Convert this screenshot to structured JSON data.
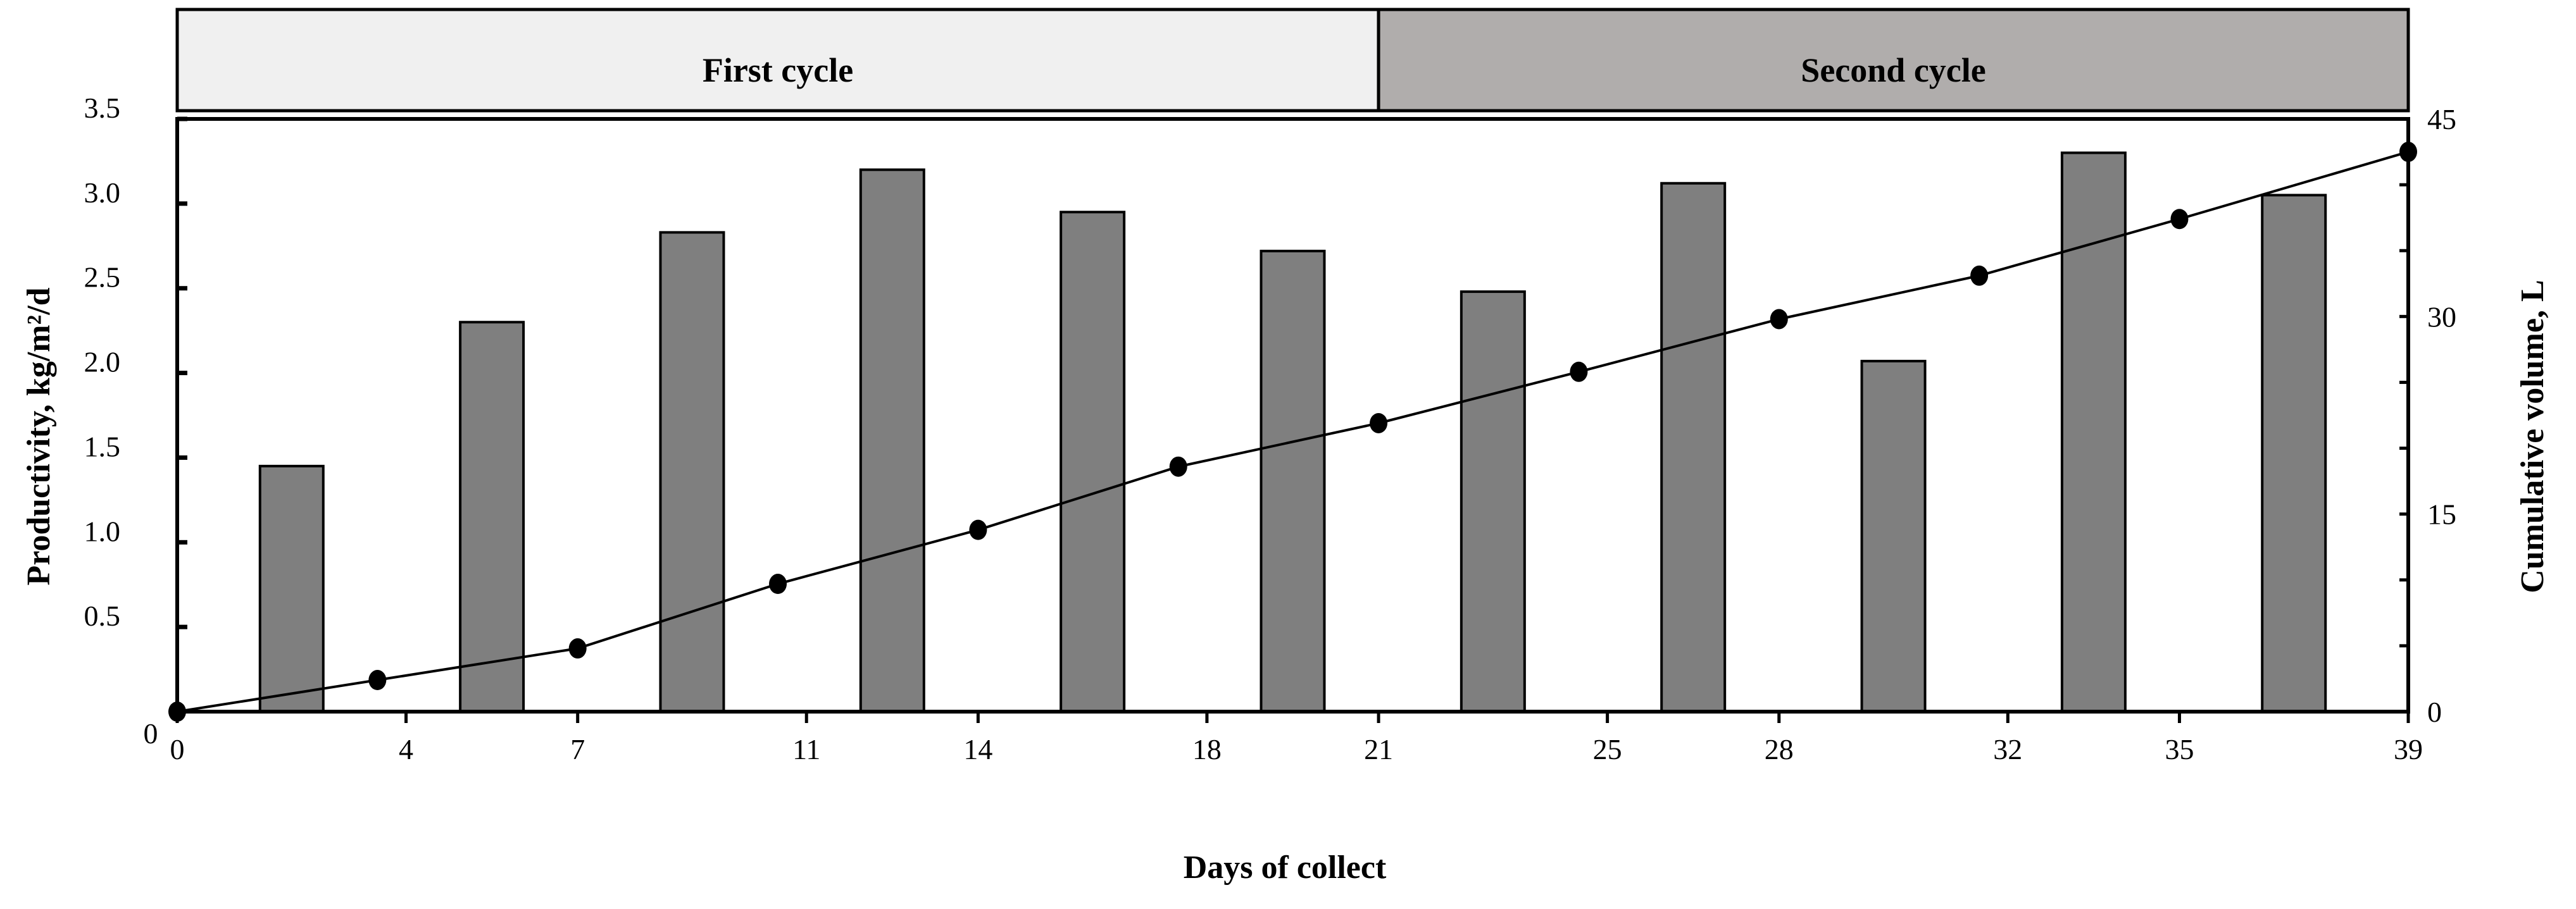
{
  "chart_data": {
    "type": "bar",
    "banner": {
      "segments": [
        {
          "label": "First cycle",
          "from_day": 0,
          "to_day": 21,
          "color": "#f0f0f0"
        },
        {
          "label": "Second cycle",
          "from_day": 21,
          "to_day": 39,
          "color": "#b0adac"
        }
      ]
    },
    "xlabel": "Days of collect",
    "ylabel_left": "Productivity, kg/m²/d",
    "ylabel_right": "Cumulative volume, L",
    "x_ticks": [
      0,
      4,
      7,
      11,
      14,
      18,
      21,
      25,
      28,
      32,
      35,
      39
    ],
    "x_range": [
      0,
      39
    ],
    "y_left_range": [
      0,
      3.5
    ],
    "y_left_ticks": [
      0.5,
      1.0,
      1.5,
      2.0,
      2.5,
      3.0,
      3.5
    ],
    "y_left_tick_labels": [
      "0.5",
      "1.0",
      "1.5",
      "2.0",
      "2.5",
      "3.0",
      "3.5"
    ],
    "y_left_zero_label": "0",
    "y_right_range": [
      0,
      45
    ],
    "y_right_ticks": [
      0,
      15,
      30,
      45
    ],
    "y_right_tick_labels": [
      "0",
      "15",
      "30",
      "45"
    ],
    "bars": {
      "name": "Productivity",
      "x": [
        2,
        5.5,
        9,
        12.5,
        16,
        19.5,
        23,
        26.5,
        30,
        33.5,
        37
      ],
      "values": [
        1.45,
        2.3,
        2.83,
        3.2,
        2.95,
        2.72,
        2.48,
        3.12,
        2.07,
        3.3,
        3.05
      ],
      "color": "#7f7f7f"
    },
    "line": {
      "name": "Cumulative volume",
      "x": [
        0,
        3.5,
        7,
        10.5,
        14,
        17.5,
        21,
        24.5,
        28,
        31.5,
        35,
        39
      ],
      "values": [
        0,
        2.4,
        4.8,
        9.7,
        13.8,
        18.6,
        21.9,
        25.8,
        29.8,
        33.1,
        37.4,
        42.5
      ],
      "color": "#000000"
    },
    "grid": false
  }
}
